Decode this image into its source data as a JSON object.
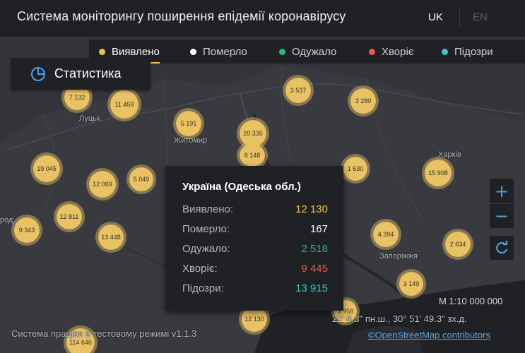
{
  "header": {
    "title": "Система моніторингу поширення епідемії коронавірусу",
    "lang_uk": "UK",
    "lang_en": "EN"
  },
  "filters": [
    {
      "label": "Виявлено",
      "color": "#f0c24b",
      "active": true
    },
    {
      "label": "Померло",
      "color": "#ffffff",
      "active": false
    },
    {
      "label": "Одужало",
      "color": "#2fb77a",
      "active": false
    },
    {
      "label": "Хворіє",
      "color": "#e85c43",
      "active": false
    },
    {
      "label": "Підозри",
      "color": "#3cc6c6",
      "active": false
    }
  ],
  "stats_button": {
    "label": "Статистика",
    "icon": "pie-chart-icon"
  },
  "map": {
    "city_labels": [
      "Луцьк",
      "Житомир",
      "Харків",
      "Запоріжжя",
      "род"
    ],
    "clusters": [
      "7 132",
      "11 459",
      "3 537",
      "3 280",
      "5 191",
      "20 335",
      "8 148",
      "19 045",
      "12 069",
      "5 049",
      "1 630",
      "15 908",
      "12 811",
      "9 343",
      "13 448",
      "4 394",
      "2 634",
      "3 149",
      "12 130",
      "3 958",
      "114 646"
    ]
  },
  "tooltip": {
    "title": "Україна (Одеська обл.)",
    "rows": [
      {
        "label": "Виявлено:",
        "value": "12 130",
        "color": "#f0c24b"
      },
      {
        "label": "Померло:",
        "value": "167",
        "color": "#ffffff"
      },
      {
        "label": "Одужало:",
        "value": "2 518",
        "color": "#2fb77a"
      },
      {
        "label": "Хворіє:",
        "value": "9 445",
        "color": "#e85c43"
      },
      {
        "label": "Підозри:",
        "value": "13 915",
        "color": "#3cc6c6"
      }
    ]
  },
  "zoom": {
    "in": "+",
    "out": "−"
  },
  "scale": "M 1:10 000 000",
  "coords": "22' 6.3\" пн.ш., 30° 51' 49.3\" зх.д.",
  "attribution": "©OpenStreetMap contributors",
  "footer_note": "Система працює в тестовому режимі v1.1.3"
}
